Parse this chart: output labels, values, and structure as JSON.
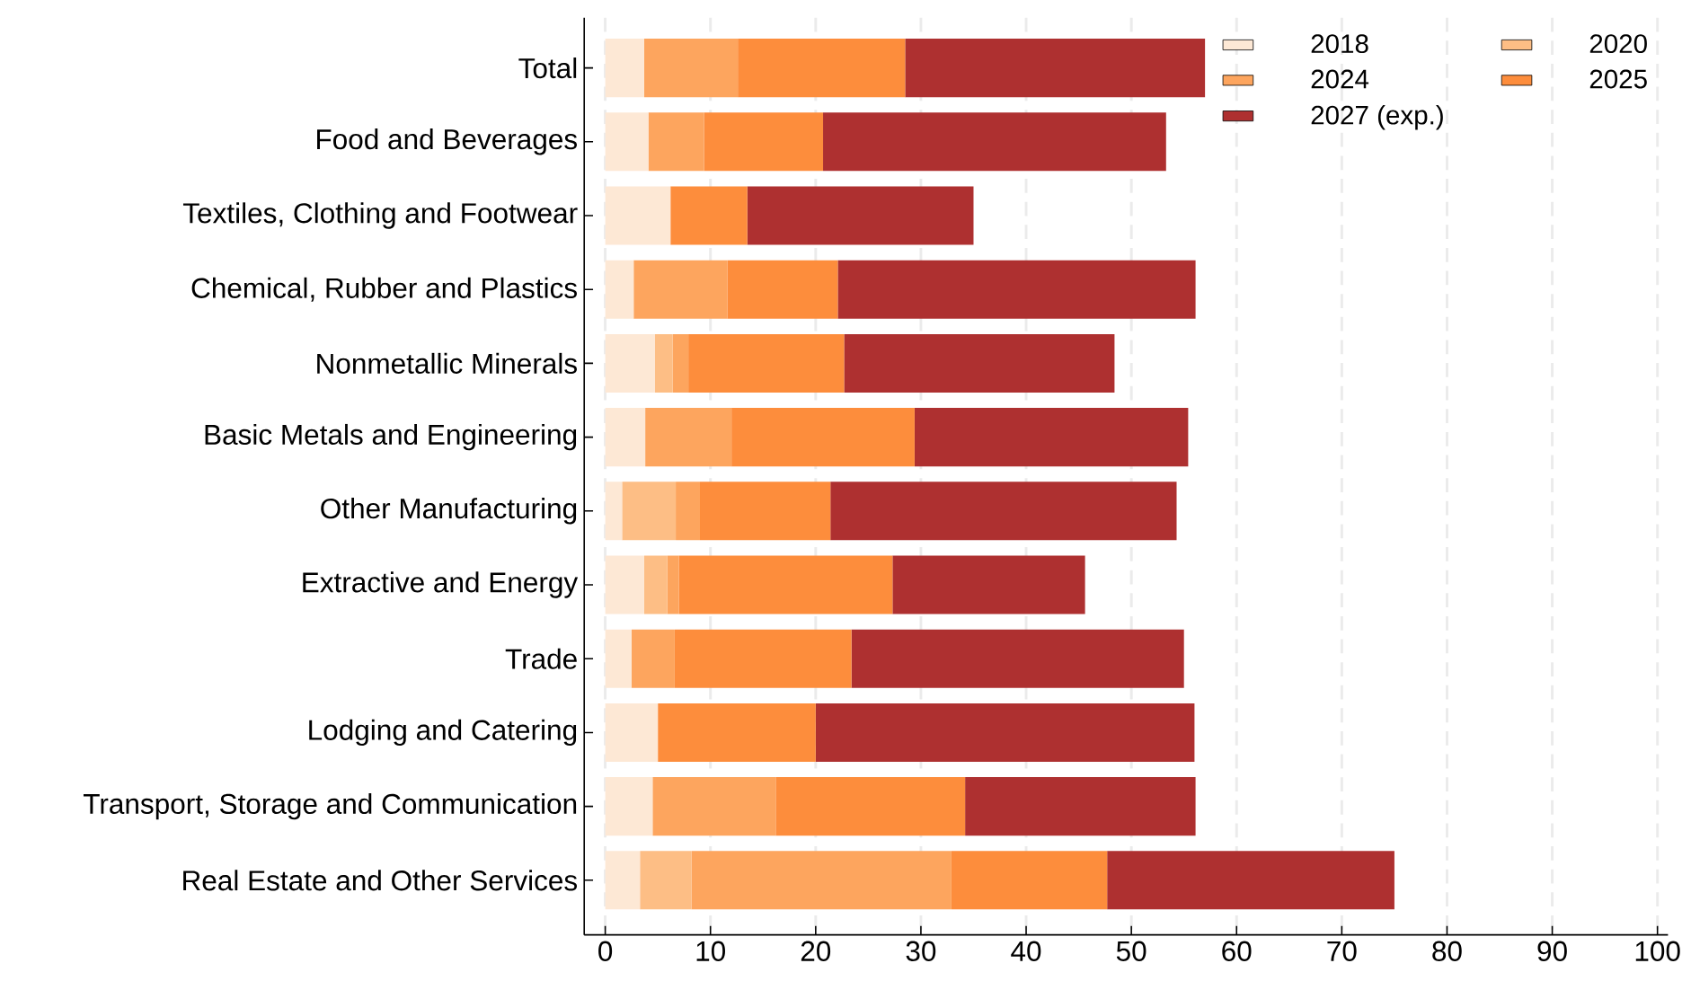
{
  "chart_data": {
    "type": "bar",
    "orientation": "horizontal",
    "stacked": true,
    "categories": [
      "Total",
      "Food and Beverages",
      "Textiles, Clothing and Footwear",
      "Chemical, Rubber and Plastics",
      "Nonmetallic Minerals",
      "Basic Metals and Engineering",
      "Other Manufacturing",
      "Extractive and Energy",
      "Trade",
      "Lodging and Catering",
      "Transport, Storage and Communication",
      "Real Estate and Other Services"
    ],
    "series": [
      {
        "name": "2018",
        "color": "#fde8d5",
        "values": [
          3.7,
          4.1,
          6.2,
          2.7,
          4.7,
          3.8,
          1.6,
          3.7,
          2.5,
          5.0,
          4.5,
          3.3
        ]
      },
      {
        "name": "2020",
        "color": "#fdbe85",
        "values": [
          null,
          null,
          null,
          null,
          1.7,
          null,
          5.1,
          2.2,
          null,
          null,
          null,
          4.9
        ]
      },
      {
        "name": "2024",
        "color": "#fda55e",
        "values": [
          8.9,
          5.3,
          null,
          8.9,
          1.5,
          8.2,
          2.3,
          1.1,
          4.1,
          null,
          11.7,
          24.7
        ]
      },
      {
        "name": "2025",
        "color": "#fd8d3c",
        "values": [
          15.9,
          11.3,
          7.3,
          10.5,
          14.8,
          17.4,
          12.4,
          20.3,
          16.8,
          15.0,
          18.0,
          14.8
        ]
      },
      {
        "name": "2027 (exp.)",
        "color": "#ae3030",
        "values": [
          28.5,
          32.6,
          21.5,
          34.0,
          25.7,
          26.0,
          32.9,
          18.3,
          31.6,
          36.0,
          21.9,
          27.3
        ]
      }
    ],
    "xlim": [
      -2,
      101
    ],
    "xticks": [
      0,
      10,
      20,
      30,
      40,
      50,
      60,
      70,
      80,
      90,
      100
    ],
    "grid": "x",
    "legend": "top right"
  }
}
